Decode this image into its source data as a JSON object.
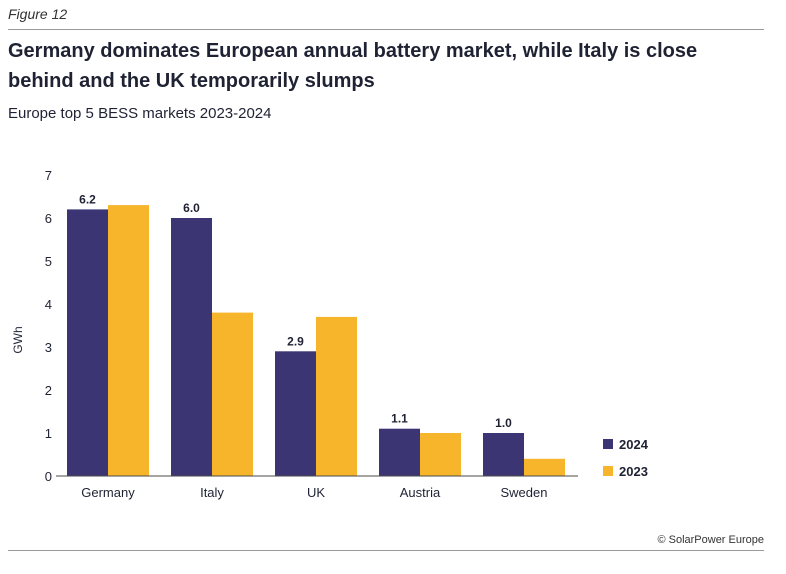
{
  "figure_label": "Figure 12",
  "title": "Germany dominates European annual battery market, while Italy is close behind and the UK temporarily slumps",
  "subtitle": "Europe top 5 BESS markets 2023-2024",
  "source": "© SolarPower Europe",
  "colors": {
    "2024": "#3b3673",
    "2023": "#f7b52c"
  },
  "chart_data": {
    "type": "bar",
    "categories": [
      "Germany",
      "Italy",
      "UK",
      "Austria",
      "Sweden"
    ],
    "series": [
      {
        "name": "2024",
        "values": [
          6.2,
          6.0,
          2.9,
          1.1,
          1.0
        ],
        "data_labels": [
          "6.2",
          "6.0",
          "2.9",
          "1.1",
          "1.0"
        ]
      },
      {
        "name": "2023",
        "values": [
          6.3,
          3.8,
          3.7,
          1.0,
          0.4
        ]
      }
    ],
    "ylabel": "GWh",
    "ylim": [
      0,
      7
    ],
    "yticks": [
      "0",
      "1",
      "2",
      "3",
      "4",
      "5",
      "6",
      "7"
    ],
    "grid": false,
    "legend_position": "bottom-right"
  }
}
